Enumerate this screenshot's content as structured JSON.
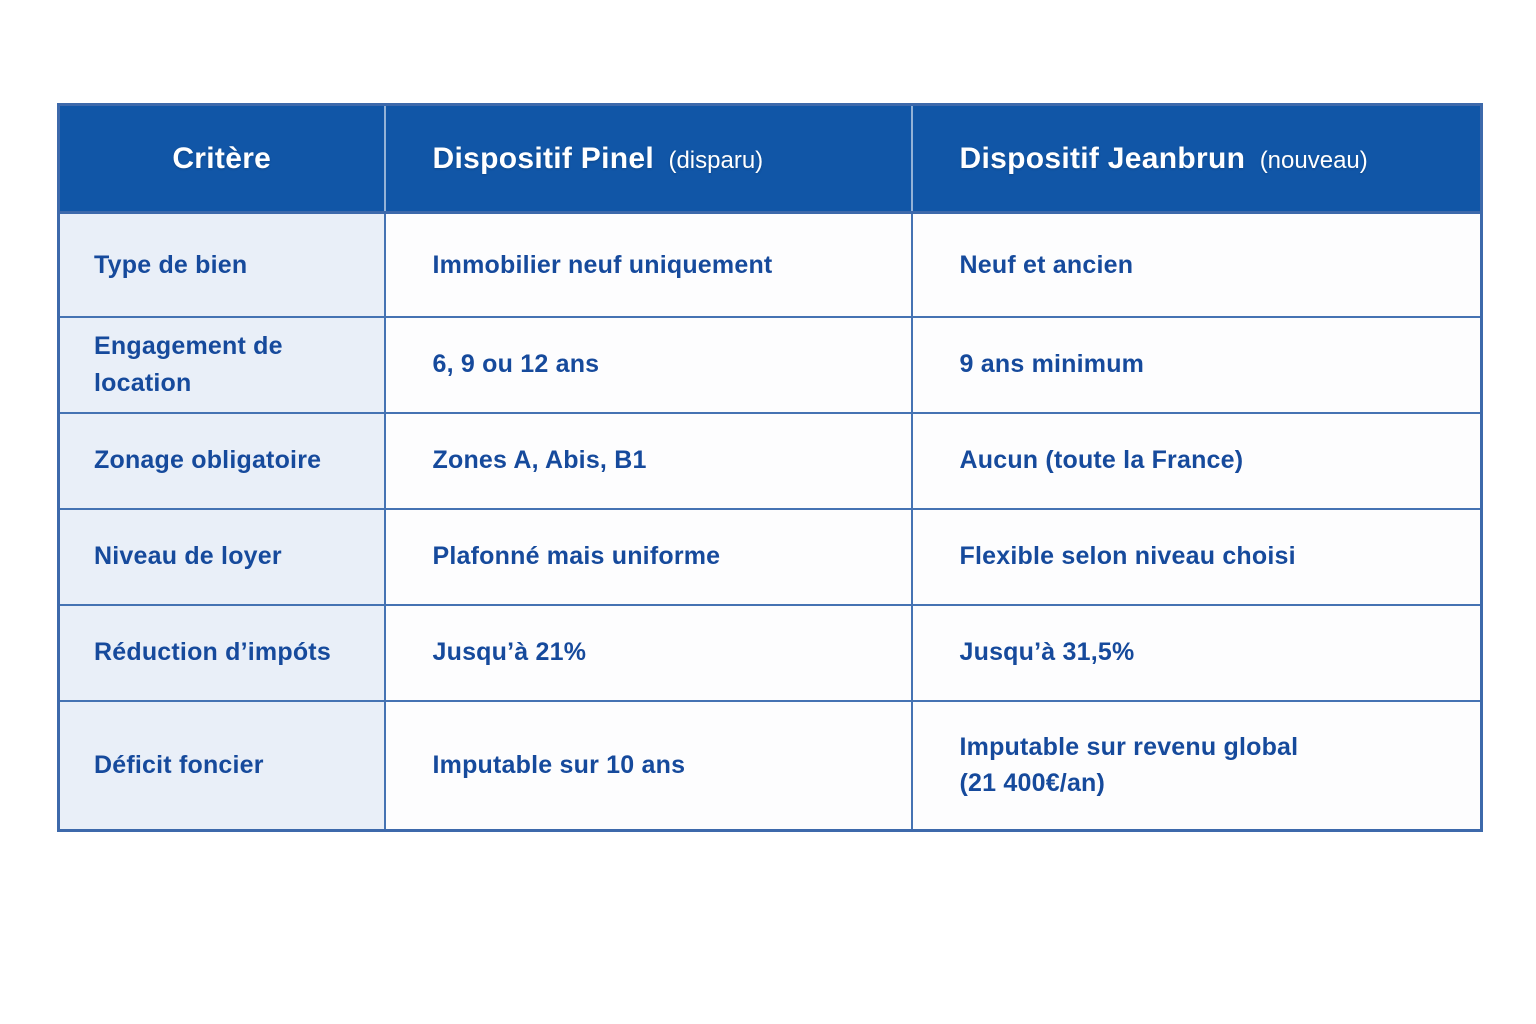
{
  "colors": {
    "page_background": "#ffffff",
    "header_background": "#1156a7",
    "header_text": "#ffffff",
    "criterion_column_background": "#e9eff8",
    "cell_background": "#fdfdfe",
    "text_blue": "#164a9c",
    "border_blue": "#4573b3"
  },
  "table": {
    "columns": [
      {
        "header": "Critère",
        "note": ""
      },
      {
        "header": "Dispositif Pinel",
        "note": "(disparu)"
      },
      {
        "header": "Dispositif Jeanbrun",
        "note": "(nouveau)"
      }
    ],
    "rows": [
      {
        "critere": "Type de bien",
        "pinel": "Immobilier neuf uniquement",
        "jeanbrun": "Neuf et ancien"
      },
      {
        "critere": "Engagement de location",
        "pinel": "6, 9 ou 12 ans",
        "jeanbrun": "9 ans minimum"
      },
      {
        "critere": "Zonage obligatoire",
        "pinel": "Zones A, Abis, B1",
        "jeanbrun": "Aucun (toute la France)"
      },
      {
        "critere": "Niveau de loyer",
        "pinel": "Plafonné mais uniforme",
        "jeanbrun": "Flexible selon niveau choisi"
      },
      {
        "critere": "Réduction d’impóts",
        "pinel": "Jusqu’à 21%",
        "jeanbrun": "Jusqu’à 31,5%"
      },
      {
        "critere": "Déficit foncier",
        "pinel": "Imputable sur 10 ans",
        "jeanbrun": "Imputable sur revenu global\n(21 400€/an)"
      }
    ]
  }
}
